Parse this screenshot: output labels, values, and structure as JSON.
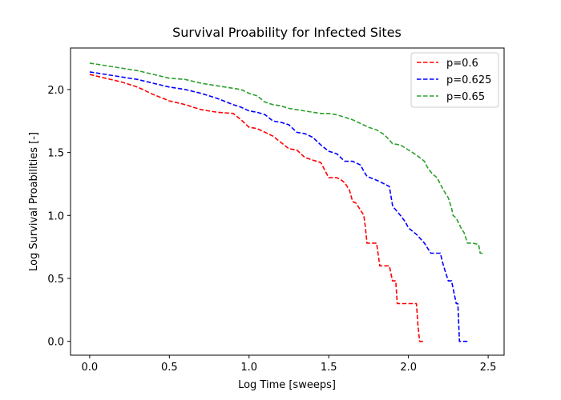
{
  "chart_data": {
    "type": "line",
    "title": "Survival Proability for Infected Sites",
    "xlabel": "Log Time [sweeps]",
    "ylabel": "Log Survival Proabilities [-]",
    "xlim": [
      -0.12,
      2.6
    ],
    "ylim": [
      -0.11,
      2.33
    ],
    "xticks": [
      0.0,
      0.5,
      1.0,
      1.5,
      2.0,
      2.5
    ],
    "xtick_labels": [
      "0.0",
      "0.5",
      "1.0",
      "1.5",
      "2.0",
      "2.5"
    ],
    "yticks": [
      0.0,
      0.5,
      1.0,
      1.5,
      2.0
    ],
    "ytick_labels": [
      "0.0",
      "0.5",
      "1.0",
      "1.5",
      "2.0"
    ],
    "grid": false,
    "legend_position": "top-right",
    "line_style": "dashed",
    "series": [
      {
        "name": "p=0.6",
        "color": "#ff0000",
        "x": [
          0.0,
          0.1,
          0.2,
          0.3,
          0.4,
          0.5,
          0.6,
          0.7,
          0.8,
          0.9,
          0.95,
          1.0,
          1.05,
          1.1,
          1.15,
          1.2,
          1.25,
          1.3,
          1.35,
          1.4,
          1.45,
          1.5,
          1.55,
          1.58,
          1.6,
          1.63,
          1.65,
          1.67,
          1.7,
          1.72,
          1.73,
          1.74,
          1.8,
          1.82,
          1.88,
          1.9,
          1.92,
          1.93,
          2.05,
          2.06,
          2.07,
          2.1
        ],
        "y": [
          2.12,
          2.09,
          2.06,
          2.02,
          1.96,
          1.91,
          1.88,
          1.84,
          1.82,
          1.81,
          1.76,
          1.7,
          1.69,
          1.66,
          1.63,
          1.58,
          1.53,
          1.52,
          1.46,
          1.44,
          1.42,
          1.3,
          1.3,
          1.28,
          1.26,
          1.2,
          1.11,
          1.1,
          1.04,
          1.0,
          0.9,
          0.78,
          0.78,
          0.6,
          0.6,
          0.48,
          0.48,
          0.3,
          0.3,
          0.12,
          0.0,
          0.0
        ]
      },
      {
        "name": "p=0.625",
        "color": "#0000ff",
        "x": [
          0.0,
          0.1,
          0.2,
          0.3,
          0.4,
          0.5,
          0.6,
          0.7,
          0.8,
          0.9,
          0.95,
          1.0,
          1.05,
          1.1,
          1.15,
          1.2,
          1.25,
          1.3,
          1.35,
          1.4,
          1.45,
          1.5,
          1.55,
          1.6,
          1.65,
          1.7,
          1.72,
          1.74,
          1.76,
          1.8,
          1.85,
          1.88,
          1.9,
          1.91,
          1.95,
          1.98,
          2.0,
          2.05,
          2.1,
          2.14,
          2.2,
          2.22,
          2.25,
          2.27,
          2.3,
          2.31,
          2.32,
          2.38
        ],
        "y": [
          2.14,
          2.12,
          2.1,
          2.08,
          2.05,
          2.02,
          2.0,
          1.97,
          1.93,
          1.88,
          1.86,
          1.83,
          1.82,
          1.8,
          1.75,
          1.74,
          1.72,
          1.66,
          1.65,
          1.62,
          1.56,
          1.51,
          1.49,
          1.43,
          1.43,
          1.4,
          1.35,
          1.31,
          1.3,
          1.28,
          1.25,
          1.23,
          1.08,
          1.06,
          1.0,
          0.95,
          0.9,
          0.85,
          0.78,
          0.7,
          0.7,
          0.6,
          0.48,
          0.48,
          0.3,
          0.3,
          0.0,
          0.0
        ]
      },
      {
        "name": "p=0.65",
        "color": "#2ca02c",
        "x": [
          0.0,
          0.1,
          0.2,
          0.3,
          0.4,
          0.5,
          0.6,
          0.7,
          0.8,
          0.9,
          0.95,
          1.0,
          1.05,
          1.1,
          1.15,
          1.2,
          1.25,
          1.3,
          1.35,
          1.4,
          1.45,
          1.5,
          1.55,
          1.6,
          1.65,
          1.7,
          1.75,
          1.8,
          1.85,
          1.88,
          1.9,
          1.95,
          2.0,
          2.05,
          2.1,
          2.12,
          2.15,
          2.18,
          2.2,
          2.22,
          2.25,
          2.27,
          2.28,
          2.3,
          2.33,
          2.35,
          2.37,
          2.4,
          2.44,
          2.45,
          2.47
        ],
        "y": [
          2.21,
          2.19,
          2.17,
          2.15,
          2.12,
          2.09,
          2.08,
          2.05,
          2.03,
          2.01,
          2.0,
          1.97,
          1.95,
          1.9,
          1.88,
          1.87,
          1.85,
          1.84,
          1.83,
          1.82,
          1.81,
          1.81,
          1.8,
          1.78,
          1.76,
          1.73,
          1.7,
          1.68,
          1.64,
          1.6,
          1.57,
          1.56,
          1.52,
          1.48,
          1.43,
          1.38,
          1.33,
          1.3,
          1.25,
          1.2,
          1.14,
          1.06,
          1.0,
          0.98,
          0.9,
          0.86,
          0.78,
          0.78,
          0.77,
          0.7,
          0.7
        ]
      }
    ]
  }
}
